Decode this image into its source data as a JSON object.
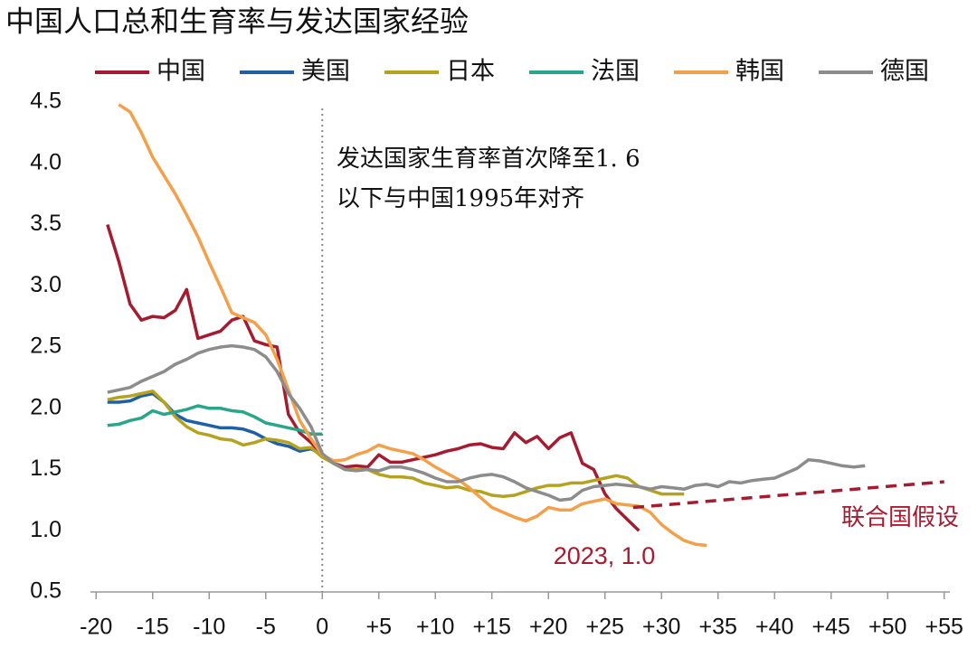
{
  "chart_data": {
    "type": "line",
    "title": "中国人口总和生育率与发达国家经验",
    "x": [
      -19,
      -18,
      -17,
      -16,
      -15,
      -14,
      -13,
      -12,
      -11,
      -10,
      -9,
      -8,
      -7,
      -6,
      -5,
      -4,
      -3,
      -2,
      -1,
      0,
      1,
      2,
      3,
      4,
      5,
      6,
      7,
      8,
      9,
      10,
      11,
      12,
      13,
      14,
      15,
      16,
      17,
      18,
      19,
      20,
      21,
      22,
      23,
      24,
      25,
      26,
      27,
      28,
      29,
      30,
      31,
      32,
      33,
      34,
      35,
      36,
      37,
      38,
      39,
      40,
      41,
      42,
      43,
      44,
      45,
      46,
      47,
      48
    ],
    "series": [
      {
        "name": "中国",
        "color": "#a51c30",
        "values": [
          3.5,
          3.2,
          2.85,
          2.72,
          2.75,
          2.74,
          2.8,
          2.97,
          2.57,
          2.6,
          2.63,
          2.72,
          2.75,
          2.55,
          2.52,
          2.5,
          1.95,
          1.8,
          1.72,
          1.62,
          1.55,
          1.52,
          1.53,
          1.52,
          1.62,
          1.56,
          1.56,
          1.58,
          1.6,
          1.62,
          1.65,
          1.67,
          1.7,
          1.71,
          1.68,
          1.67,
          1.8,
          1.72,
          1.77,
          1.67,
          1.76,
          1.8,
          1.55,
          1.5,
          1.3,
          1.18,
          1.09,
          1.0,
          null,
          null,
          null,
          null,
          null,
          null,
          null,
          null,
          null,
          null,
          null,
          null,
          null,
          null,
          null,
          null,
          null,
          null,
          null,
          null
        ]
      },
      {
        "name": "美国",
        "color": "#1f5fa8",
        "values": [
          2.05,
          2.05,
          2.06,
          2.1,
          2.12,
          2.05,
          1.95,
          1.9,
          1.88,
          1.86,
          1.84,
          1.84,
          1.83,
          1.8,
          1.75,
          1.71,
          1.69,
          1.65,
          1.67,
          1.62,
          null,
          null,
          null,
          null,
          null,
          null,
          null,
          null,
          null,
          null,
          null,
          null,
          null,
          null,
          null,
          null,
          null,
          null,
          null,
          null,
          null,
          null,
          null,
          null,
          null,
          null,
          null,
          null,
          null,
          null,
          null,
          null,
          null,
          null,
          null,
          null,
          null,
          null,
          null,
          null,
          null,
          null,
          null,
          null,
          null,
          null,
          null,
          null
        ]
      },
      {
        "name": "日本",
        "color": "#b5a21e",
        "values": [
          2.07,
          2.09,
          2.1,
          2.12,
          2.14,
          2.05,
          1.93,
          1.85,
          1.8,
          1.78,
          1.75,
          1.74,
          1.7,
          1.72,
          1.75,
          1.74,
          1.72,
          1.67,
          1.68,
          1.6,
          1.55,
          1.5,
          1.5,
          1.5,
          1.46,
          1.44,
          1.44,
          1.43,
          1.39,
          1.37,
          1.35,
          1.36,
          1.33,
          1.32,
          1.29,
          1.28,
          1.29,
          1.32,
          1.35,
          1.37,
          1.37,
          1.39,
          1.39,
          1.41,
          1.43,
          1.45,
          1.43,
          1.36,
          1.33,
          1.3,
          1.3,
          1.3,
          null,
          null,
          null,
          null,
          null,
          null,
          null,
          null,
          null,
          null,
          null,
          null,
          null,
          null,
          null,
          null
        ]
      },
      {
        "name": "法国",
        "color": "#2aa58a",
        "values": [
          1.86,
          1.87,
          1.9,
          1.92,
          1.98,
          1.95,
          1.97,
          1.99,
          2.02,
          2.0,
          2.0,
          1.98,
          1.97,
          1.93,
          1.88,
          1.86,
          1.84,
          1.82,
          1.79,
          1.79,
          null,
          null,
          null,
          null,
          null,
          null,
          null,
          null,
          null,
          null,
          null,
          null,
          null,
          null,
          null,
          null,
          null,
          null,
          null,
          null,
          null,
          null,
          null,
          null,
          null,
          null,
          null,
          null,
          null,
          null,
          null,
          null,
          null,
          null,
          null,
          null,
          null,
          null,
          null,
          null,
          null,
          null,
          null,
          null,
          null,
          null,
          null,
          null
        ]
      },
      {
        "name": "韩国",
        "color": "#f4a04a",
        "values": [
          null,
          4.48,
          4.42,
          4.25,
          4.05,
          3.9,
          3.75,
          3.58,
          3.4,
          3.19,
          2.99,
          2.78,
          2.74,
          2.7,
          2.6,
          2.4,
          2.15,
          1.9,
          1.75,
          1.62,
          1.57,
          1.58,
          1.62,
          1.65,
          1.7,
          1.67,
          1.65,
          1.63,
          1.58,
          1.52,
          1.47,
          1.42,
          1.35,
          1.27,
          1.19,
          1.15,
          1.11,
          1.08,
          1.12,
          1.19,
          1.17,
          1.17,
          1.22,
          1.24,
          1.26,
          1.22,
          1.21,
          1.2,
          1.15,
          1.05,
          0.98,
          0.92,
          0.89,
          0.88,
          null,
          null,
          null,
          null,
          null,
          null,
          null,
          null,
          null,
          null,
          null,
          null,
          null,
          null
        ]
      },
      {
        "name": "德国",
        "color": "#8c8c8c",
        "values": [
          2.13,
          2.15,
          2.17,
          2.22,
          2.26,
          2.3,
          2.36,
          2.4,
          2.45,
          2.48,
          2.5,
          2.51,
          2.5,
          2.48,
          2.42,
          2.3,
          2.12,
          2.0,
          1.85,
          1.63,
          1.55,
          1.5,
          1.49,
          1.5,
          1.49,
          1.52,
          1.52,
          1.5,
          1.47,
          1.43,
          1.4,
          1.4,
          1.43,
          1.45,
          1.46,
          1.44,
          1.4,
          1.35,
          1.32,
          1.29,
          1.25,
          1.26,
          1.33,
          1.36,
          1.37,
          1.38,
          1.37,
          1.36,
          1.34,
          1.36,
          1.35,
          1.34,
          1.37,
          1.38,
          1.36,
          1.4,
          1.39,
          1.41,
          1.42,
          1.43,
          1.47,
          1.51,
          1.58,
          1.57,
          1.55,
          1.53,
          1.52,
          1.53
        ]
      }
    ],
    "projection": {
      "label": "联合国假设",
      "color": "#a51c30",
      "x": [
        27.5,
        55
      ],
      "values": [
        1.19,
        1.4
      ]
    },
    "vline": 0,
    "annotation": [
      "发达国家生育率首次降至1. 6",
      "以下与中国1995年对齐"
    ],
    "point_label": "2023, 1.0",
    "xlim": [
      -20.5,
      55.5
    ],
    "ylim": [
      0.5,
      4.5
    ],
    "xticks": [
      -20,
      -15,
      -10,
      -5,
      0,
      {
        "value": 5,
        "label": "+5"
      },
      {
        "value": 10,
        "label": "+10"
      },
      {
        "value": 15,
        "label": "+15"
      },
      {
        "value": 20,
        "label": "+20"
      },
      {
        "value": 25,
        "label": "+25"
      },
      {
        "value": 30,
        "label": "+30"
      },
      {
        "value": 35,
        "label": "+35"
      },
      {
        "value": 40,
        "label": "+40"
      },
      {
        "value": 45,
        "label": "+45"
      },
      {
        "value": 50,
        "label": "+50"
      },
      {
        "value": 55,
        "label": "+55"
      }
    ],
    "yticks": [
      0.5,
      {
        "value": 1,
        "label": "1.0"
      },
      1.5,
      {
        "value": 2,
        "label": "2.0"
      },
      2.5,
      {
        "value": 3,
        "label": "3.0"
      },
      3.5,
      {
        "value": 4,
        "label": "4.0"
      },
      4.5
    ]
  }
}
